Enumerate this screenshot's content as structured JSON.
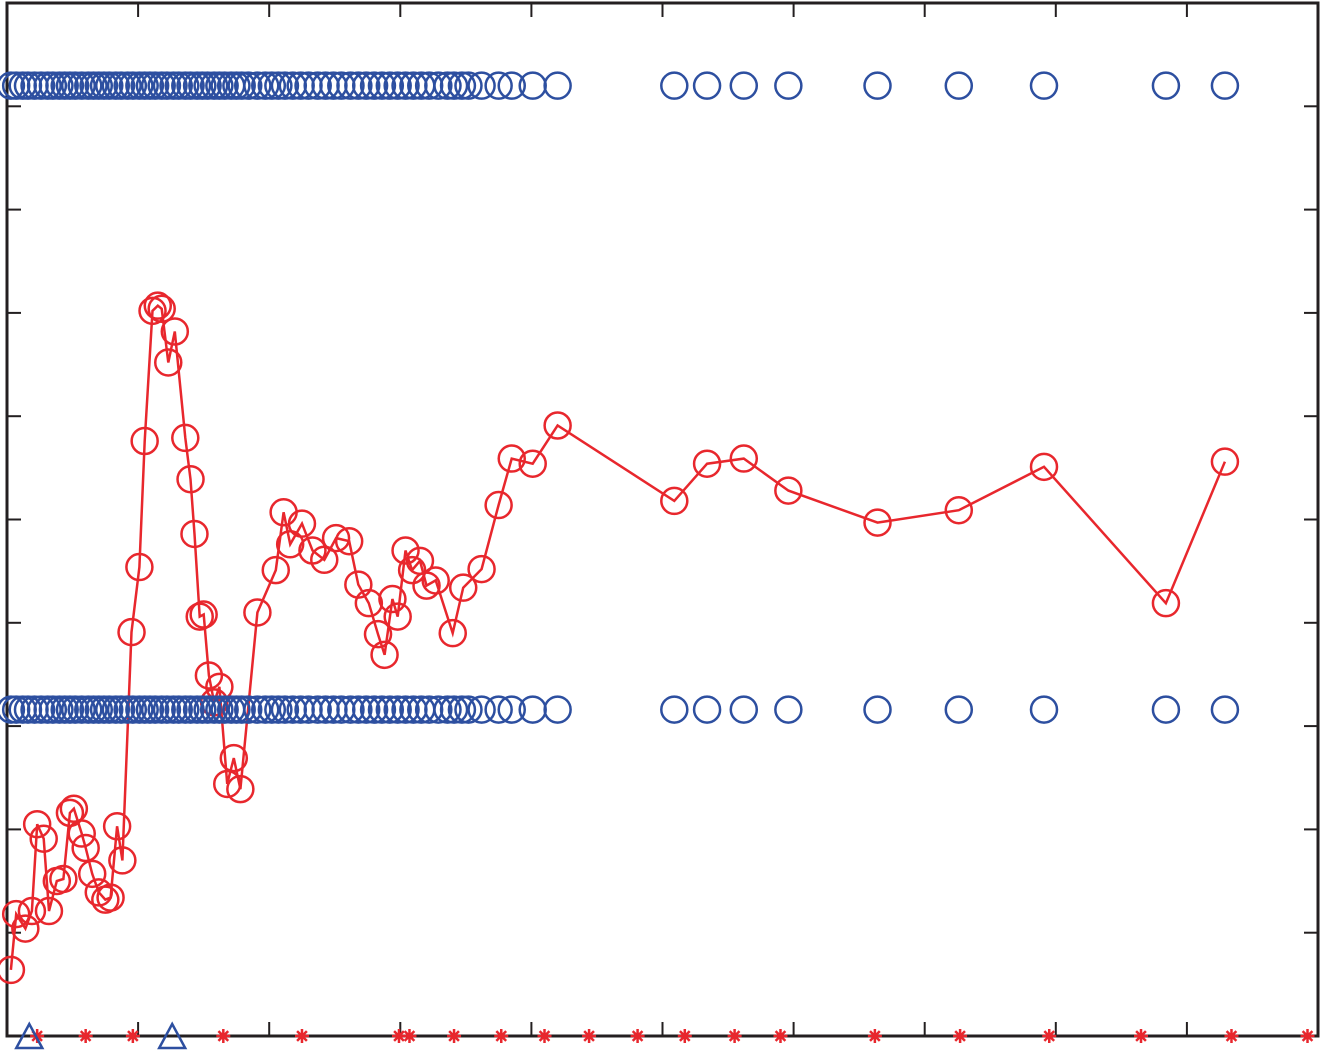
{
  "chart_data": {
    "type": "line",
    "title": "",
    "xlabel": "",
    "ylabel": "",
    "grid": false,
    "xlim": [
      0,
      1000
    ],
    "ylim": [
      -5,
      5
    ],
    "colors": {
      "primary": "#e8272d",
      "secondary": "#2d4fa0",
      "axis": "#231f20"
    },
    "xticks": [
      0,
      100,
      200,
      300,
      400,
      500,
      600,
      700,
      800,
      900,
      1000
    ],
    "yticks": [
      -5,
      -4,
      -3,
      -2,
      -1,
      0,
      1,
      2,
      3,
      4,
      5
    ],
    "series": [
      {
        "marker": "circle-line",
        "color": "#e8272d",
        "points": [
          [
            3,
            -4.36
          ],
          [
            7,
            -3.82
          ],
          [
            14,
            -3.96
          ],
          [
            19,
            -3.79
          ],
          [
            23,
            -2.95
          ],
          [
            28,
            -3.09
          ],
          [
            32,
            -3.79
          ],
          [
            38,
            -3.5
          ],
          [
            43,
            -3.48
          ],
          [
            48,
            -2.84
          ],
          [
            51,
            -2.8
          ],
          [
            57,
            -3.04
          ],
          [
            60,
            -3.18
          ],
          [
            65,
            -3.43
          ],
          [
            70,
            -3.61
          ],
          [
            75,
            -3.68
          ],
          [
            79,
            -3.66
          ],
          [
            84,
            -2.97
          ],
          [
            88,
            -3.3
          ],
          [
            95,
            -1.09
          ],
          [
            101,
            -0.46
          ],
          [
            105,
            0.76
          ],
          [
            111,
            2.02
          ],
          [
            115,
            2.07
          ],
          [
            118,
            2.04
          ],
          [
            123,
            1.52
          ],
          [
            128,
            1.82
          ],
          [
            136,
            0.79
          ],
          [
            140,
            0.39
          ],
          [
            143,
            -0.14
          ],
          [
            147,
            -0.94
          ],
          [
            150,
            -0.92
          ],
          [
            154,
            -1.51
          ],
          [
            158,
            -1.77
          ],
          [
            162,
            -1.62
          ],
          [
            168,
            -2.56
          ],
          [
            173,
            -2.31
          ],
          [
            178,
            -2.61
          ],
          [
            191,
            -0.9
          ],
          [
            205,
            -0.49
          ],
          [
            211,
            0.07
          ],
          [
            216,
            -0.24
          ],
          [
            225,
            -0.04
          ],
          [
            233,
            -0.3
          ],
          [
            242,
            -0.39
          ],
          [
            251,
            -0.18
          ],
          [
            261,
            -0.21
          ],
          [
            268,
            -0.63
          ],
          [
            276,
            -0.81
          ],
          [
            283,
            -1.11
          ],
          [
            288,
            -1.31
          ],
          [
            294,
            -0.77
          ],
          [
            298,
            -0.94
          ],
          [
            304,
            -0.3
          ],
          [
            309,
            -0.49
          ],
          [
            315,
            -0.4
          ],
          [
            320,
            -0.64
          ],
          [
            327,
            -0.59
          ],
          [
            340,
            -1.1
          ],
          [
            348,
            -0.66
          ],
          [
            362,
            -0.48
          ],
          [
            375,
            0.14
          ],
          [
            385,
            0.59
          ],
          [
            401,
            0.54
          ],
          [
            420,
            0.91
          ],
          [
            509,
            0.18
          ],
          [
            534,
            0.54
          ],
          [
            562,
            0.59
          ],
          [
            596,
            0.28
          ],
          [
            664,
            -0.03
          ],
          [
            726,
            0.09
          ],
          [
            791,
            0.51
          ],
          [
            884,
            -0.81
          ],
          [
            929,
            0.56
          ]
        ]
      },
      {
        "marker": "circle",
        "color": "#2d4fa0",
        "y": 4.2,
        "x": [
          3,
          7,
          12,
          16,
          21,
          26,
          31,
          35,
          40,
          44,
          48,
          52,
          57,
          62,
          66,
          70,
          74,
          78,
          83,
          87,
          92,
          96,
          101,
          105,
          109,
          113,
          118,
          122,
          127,
          131,
          136,
          140,
          145,
          149,
          153,
          158,
          162,
          166,
          171,
          175,
          179,
          184,
          191,
          197,
          202,
          207,
          212,
          218,
          224,
          230,
          237,
          243,
          249,
          255,
          262,
          268,
          274,
          280,
          286,
          292,
          298,
          304,
          310,
          316,
          322,
          329,
          336,
          341,
          347,
          352,
          362,
          375,
          385,
          401,
          420,
          509,
          534,
          562,
          596,
          664,
          726,
          791,
          884,
          929
        ]
      },
      {
        "marker": "circle",
        "color": "#2d4fa0",
        "y": -1.84,
        "x": [
          3,
          7,
          12,
          16,
          21,
          26,
          31,
          35,
          40,
          44,
          48,
          52,
          57,
          62,
          66,
          70,
          74,
          78,
          83,
          87,
          92,
          96,
          101,
          105,
          109,
          113,
          118,
          122,
          127,
          131,
          136,
          140,
          145,
          149,
          153,
          158,
          162,
          166,
          171,
          175,
          179,
          184,
          191,
          197,
          202,
          207,
          212,
          218,
          224,
          230,
          237,
          243,
          249,
          255,
          262,
          268,
          274,
          280,
          286,
          292,
          298,
          304,
          310,
          316,
          322,
          329,
          336,
          341,
          347,
          352,
          362,
          375,
          385,
          401,
          420,
          509,
          534,
          562,
          596,
          664,
          726,
          791,
          884,
          929
        ]
      },
      {
        "marker": "asterisk",
        "color": "#e8272d",
        "y": -5,
        "x": [
          23,
          60,
          96,
          165,
          225,
          299,
          307,
          341,
          377,
          410,
          444,
          481,
          517,
          555,
          590,
          662,
          727,
          795,
          865,
          934,
          992
        ]
      },
      {
        "marker": "triangle",
        "color": "#2d4fa0",
        "y": -5,
        "x": [
          17,
          126
        ]
      }
    ]
  }
}
